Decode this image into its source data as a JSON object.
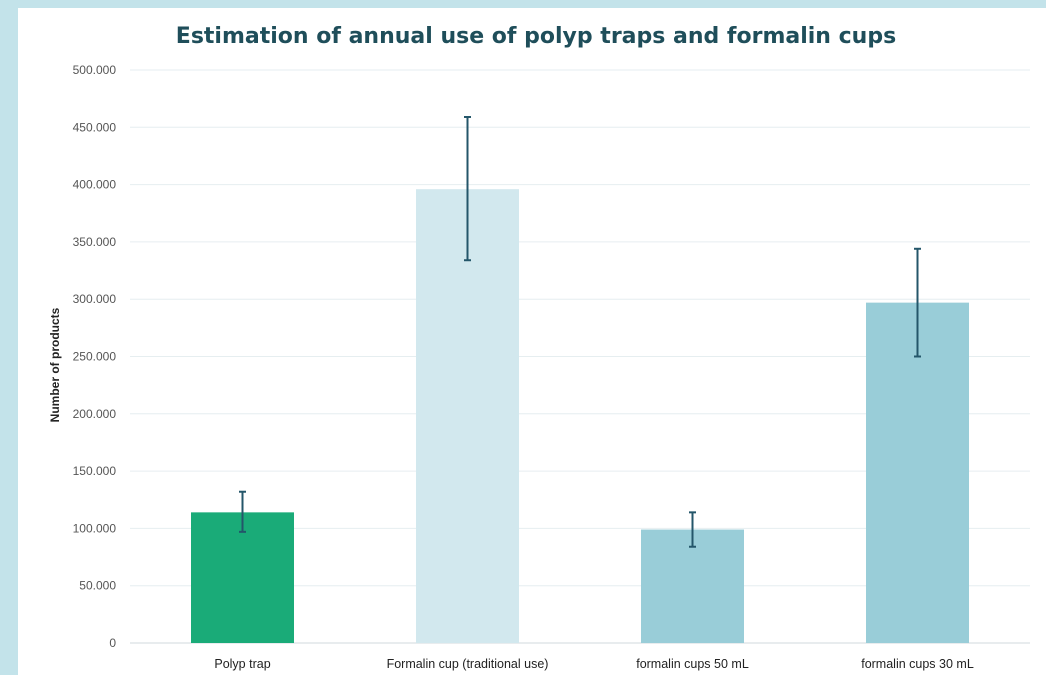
{
  "chart_data": {
    "type": "bar",
    "title": "Estimation of annual use of polyp traps and formalin cups",
    "xlabel": "",
    "ylabel": "Number of products",
    "ylim": [
      0,
      500000
    ],
    "yticks": [
      0,
      50000,
      100000,
      150000,
      200000,
      250000,
      300000,
      350000,
      400000,
      450000,
      500000
    ],
    "ytick_labels": [
      "0",
      "50.000",
      "100.000",
      "150.000",
      "200.000",
      "250.000",
      "300.000",
      "350.000",
      "400.000",
      "450.000",
      "500.000"
    ],
    "categories": [
      "Polyp trap",
      "Formalin cup (traditional use)",
      "formalin cups 50 mL",
      "formalin cups 30 mL"
    ],
    "values": [
      114000,
      396000,
      99000,
      297000
    ],
    "error_low": [
      97000,
      334000,
      84000,
      250000
    ],
    "error_high": [
      132000,
      459000,
      114000,
      344000
    ],
    "bar_colors": [
      "#1aab78",
      "#d2e8ee",
      "#99cdd8",
      "#99cdd8"
    ],
    "grid": true,
    "legend": "none"
  }
}
